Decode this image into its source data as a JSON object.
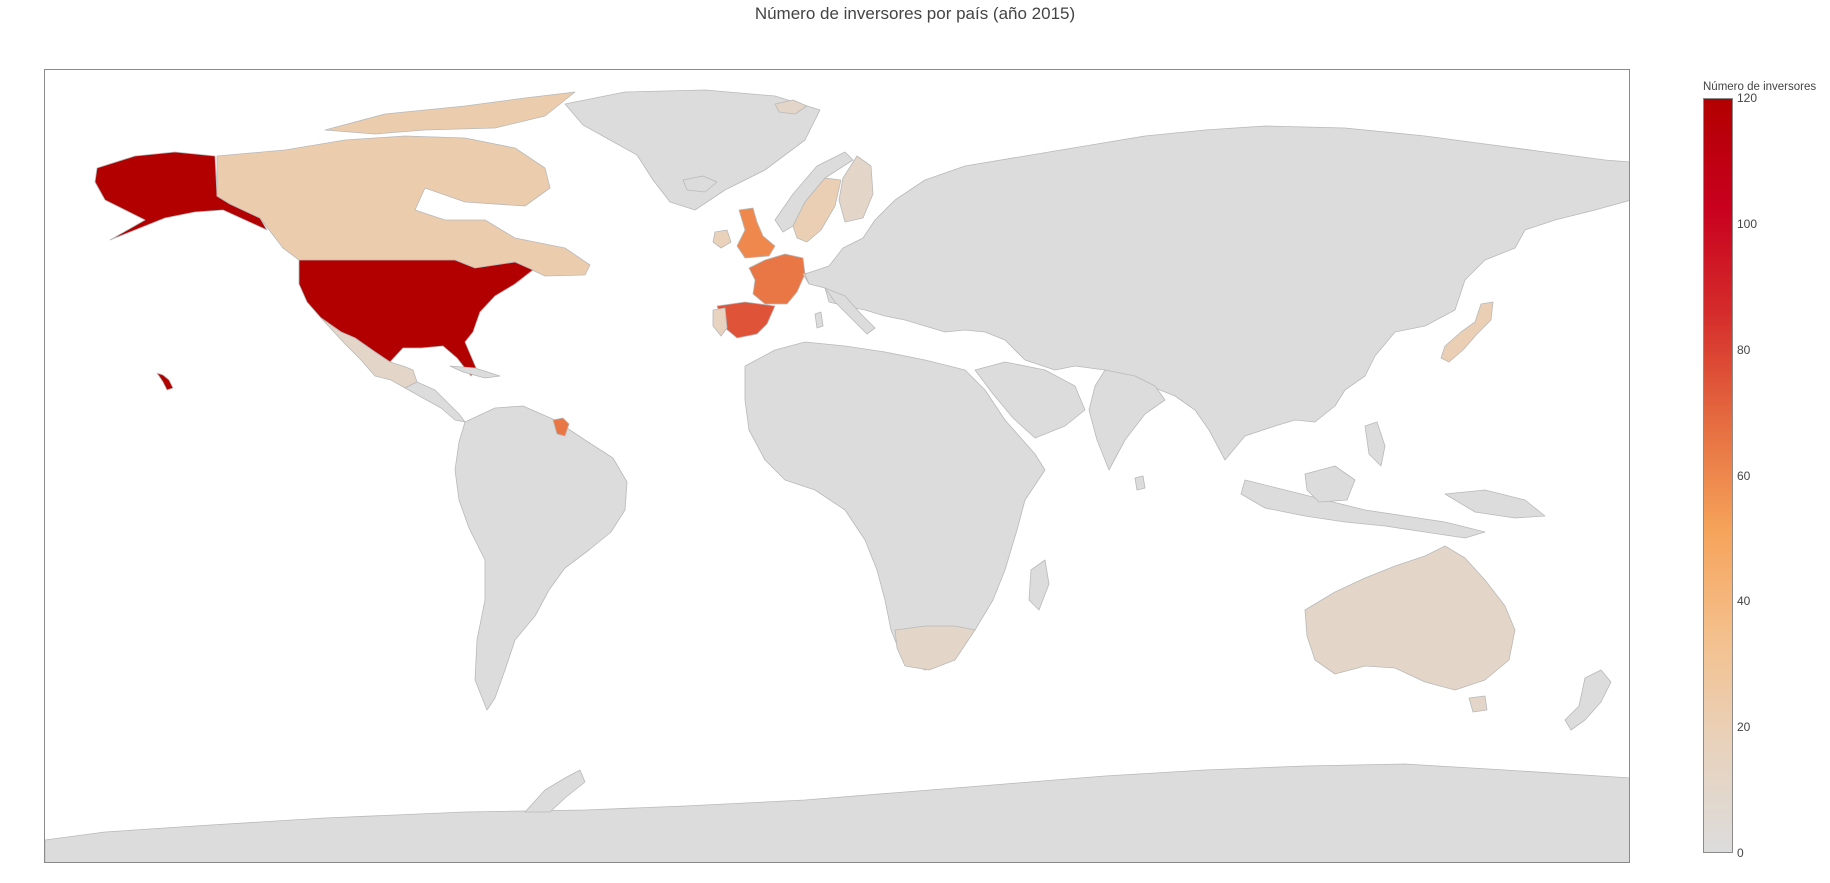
{
  "title": "Número de inversores por país (año 2015)",
  "colorbar": {
    "title": "Número de inversores",
    "min": 0,
    "max": 120,
    "ticks": [
      "0",
      "20",
      "40",
      "60",
      "80",
      "100",
      "120"
    ],
    "scale": [
      "#dcdcdc",
      "#e8d2bc",
      "#f4c08c",
      "#f6a35a",
      "#e56c40",
      "#d52d2b",
      "#c8001e",
      "#b20000"
    ]
  },
  "colors": {
    "no_data": "#dcdcdc",
    "border": "#b9b9b9"
  },
  "chart_data": {
    "type": "choropleth",
    "projection": "equirectangular",
    "metric": "Número de inversores",
    "countries": [
      {
        "name": "United States",
        "value": 120
      },
      {
        "name": "Spain",
        "value": 75
      },
      {
        "name": "France",
        "value": 65
      },
      {
        "name": "United Kingdom",
        "value": 60
      },
      {
        "name": "French Guiana",
        "value": 65
      },
      {
        "name": "Canada",
        "value": 22
      },
      {
        "name": "Japan",
        "value": 20
      },
      {
        "name": "Sweden",
        "value": 20
      },
      {
        "name": "Switzerland",
        "value": 20
      },
      {
        "name": "Ireland",
        "value": 18
      },
      {
        "name": "Portugal",
        "value": 15
      },
      {
        "name": "Finland",
        "value": 10
      },
      {
        "name": "Australia",
        "value": 10
      },
      {
        "name": "Mexico",
        "value": 10
      },
      {
        "name": "South Africa",
        "value": 10
      },
      {
        "name": "Svalbard",
        "value": 10
      }
    ]
  }
}
